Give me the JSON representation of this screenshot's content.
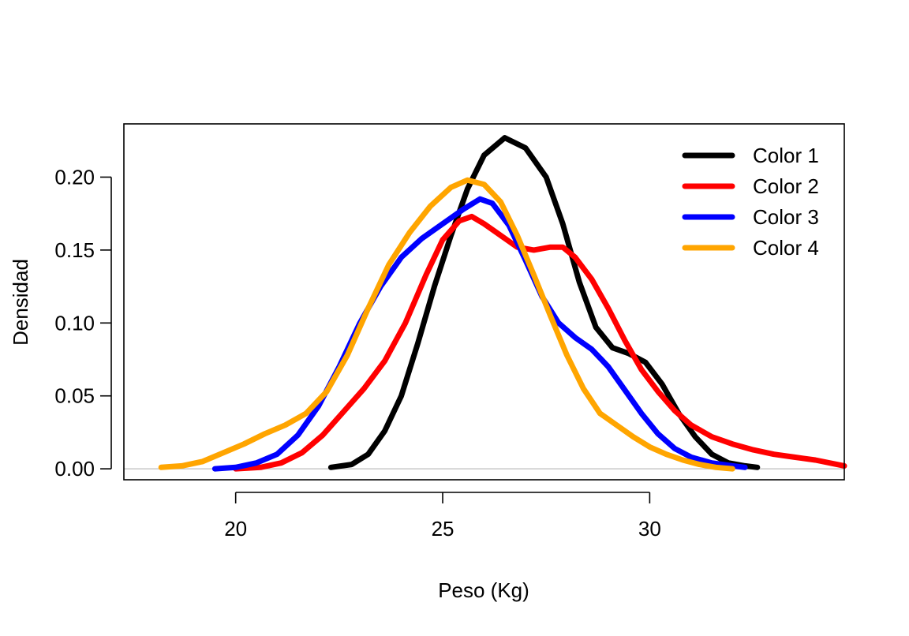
{
  "chart_data": {
    "type": "line",
    "title": "",
    "xlabel": "Peso (Kg)",
    "ylabel": "Densidad",
    "xlim": [
      17.3,
      34.7
    ],
    "ylim": [
      -0.0075,
      0.2365
    ],
    "x_ticks": [
      "20",
      "25",
      "30"
    ],
    "y_ticks": [
      "0.00",
      "0.05",
      "0.10",
      "0.15",
      "0.20"
    ],
    "grid": false,
    "legend_position": "top-right",
    "baseline": 0,
    "series": [
      {
        "name": "Color 1",
        "color": "#000000",
        "points": [
          [
            22.3,
            0.001
          ],
          [
            22.8,
            0.003
          ],
          [
            23.2,
            0.01
          ],
          [
            23.6,
            0.026
          ],
          [
            24.0,
            0.05
          ],
          [
            24.4,
            0.086
          ],
          [
            24.8,
            0.125
          ],
          [
            25.2,
            0.16
          ],
          [
            25.6,
            0.192
          ],
          [
            26.0,
            0.215
          ],
          [
            26.5,
            0.227
          ],
          [
            27.0,
            0.22
          ],
          [
            27.5,
            0.2
          ],
          [
            27.9,
            0.168
          ],
          [
            28.3,
            0.128
          ],
          [
            28.7,
            0.097
          ],
          [
            29.1,
            0.083
          ],
          [
            29.5,
            0.079
          ],
          [
            29.9,
            0.073
          ],
          [
            30.3,
            0.058
          ],
          [
            30.7,
            0.038
          ],
          [
            31.1,
            0.022
          ],
          [
            31.5,
            0.01
          ],
          [
            31.9,
            0.004
          ],
          [
            32.3,
            0.002
          ],
          [
            32.6,
            0.001
          ]
        ]
      },
      {
        "name": "Color 2",
        "color": "#ff0000",
        "points": [
          [
            20.0,
            0.0
          ],
          [
            20.6,
            0.001
          ],
          [
            21.1,
            0.004
          ],
          [
            21.6,
            0.011
          ],
          [
            22.1,
            0.023
          ],
          [
            22.6,
            0.039
          ],
          [
            23.1,
            0.055
          ],
          [
            23.6,
            0.074
          ],
          [
            24.1,
            0.1
          ],
          [
            24.6,
            0.133
          ],
          [
            25.0,
            0.157
          ],
          [
            25.4,
            0.17
          ],
          [
            25.7,
            0.173
          ],
          [
            26.0,
            0.168
          ],
          [
            26.4,
            0.16
          ],
          [
            26.8,
            0.152
          ],
          [
            27.2,
            0.15
          ],
          [
            27.6,
            0.152
          ],
          [
            27.9,
            0.152
          ],
          [
            28.2,
            0.145
          ],
          [
            28.6,
            0.13
          ],
          [
            29.0,
            0.11
          ],
          [
            29.4,
            0.088
          ],
          [
            29.8,
            0.068
          ],
          [
            30.2,
            0.053
          ],
          [
            30.6,
            0.04
          ],
          [
            31.0,
            0.03
          ],
          [
            31.5,
            0.022
          ],
          [
            32.0,
            0.017
          ],
          [
            32.5,
            0.013
          ],
          [
            33.0,
            0.01
          ],
          [
            33.5,
            0.008
          ],
          [
            34.0,
            0.006
          ],
          [
            34.7,
            0.002
          ]
        ]
      },
      {
        "name": "Color 3",
        "color": "#0000ff",
        "points": [
          [
            19.5,
            0.0
          ],
          [
            20.0,
            0.001
          ],
          [
            20.5,
            0.004
          ],
          [
            21.0,
            0.01
          ],
          [
            21.5,
            0.023
          ],
          [
            22.0,
            0.043
          ],
          [
            22.5,
            0.07
          ],
          [
            23.0,
            0.1
          ],
          [
            23.5,
            0.125
          ],
          [
            24.0,
            0.145
          ],
          [
            24.5,
            0.158
          ],
          [
            25.0,
            0.168
          ],
          [
            25.5,
            0.178
          ],
          [
            25.9,
            0.185
          ],
          [
            26.2,
            0.182
          ],
          [
            26.6,
            0.167
          ],
          [
            27.0,
            0.143
          ],
          [
            27.4,
            0.118
          ],
          [
            27.8,
            0.1
          ],
          [
            28.2,
            0.09
          ],
          [
            28.6,
            0.082
          ],
          [
            29.0,
            0.07
          ],
          [
            29.4,
            0.054
          ],
          [
            29.8,
            0.038
          ],
          [
            30.2,
            0.024
          ],
          [
            30.6,
            0.014
          ],
          [
            31.0,
            0.008
          ],
          [
            31.5,
            0.004
          ],
          [
            32.0,
            0.002
          ],
          [
            32.3,
            0.001
          ]
        ]
      },
      {
        "name": "Color 4",
        "color": "#ffa500",
        "points": [
          [
            18.2,
            0.001
          ],
          [
            18.7,
            0.002
          ],
          [
            19.2,
            0.005
          ],
          [
            19.7,
            0.011
          ],
          [
            20.2,
            0.017
          ],
          [
            20.7,
            0.024
          ],
          [
            21.2,
            0.03
          ],
          [
            21.7,
            0.038
          ],
          [
            22.2,
            0.053
          ],
          [
            22.7,
            0.078
          ],
          [
            23.2,
            0.11
          ],
          [
            23.7,
            0.14
          ],
          [
            24.2,
            0.162
          ],
          [
            24.7,
            0.18
          ],
          [
            25.2,
            0.193
          ],
          [
            25.6,
            0.198
          ],
          [
            26.0,
            0.195
          ],
          [
            26.4,
            0.183
          ],
          [
            26.8,
            0.16
          ],
          [
            27.2,
            0.133
          ],
          [
            27.6,
            0.105
          ],
          [
            28.0,
            0.078
          ],
          [
            28.4,
            0.055
          ],
          [
            28.8,
            0.038
          ],
          [
            29.2,
            0.03
          ],
          [
            29.6,
            0.022
          ],
          [
            30.0,
            0.015
          ],
          [
            30.4,
            0.01
          ],
          [
            30.8,
            0.006
          ],
          [
            31.2,
            0.003
          ],
          [
            31.6,
            0.001
          ],
          [
            32.0,
            0.0
          ]
        ]
      }
    ]
  }
}
